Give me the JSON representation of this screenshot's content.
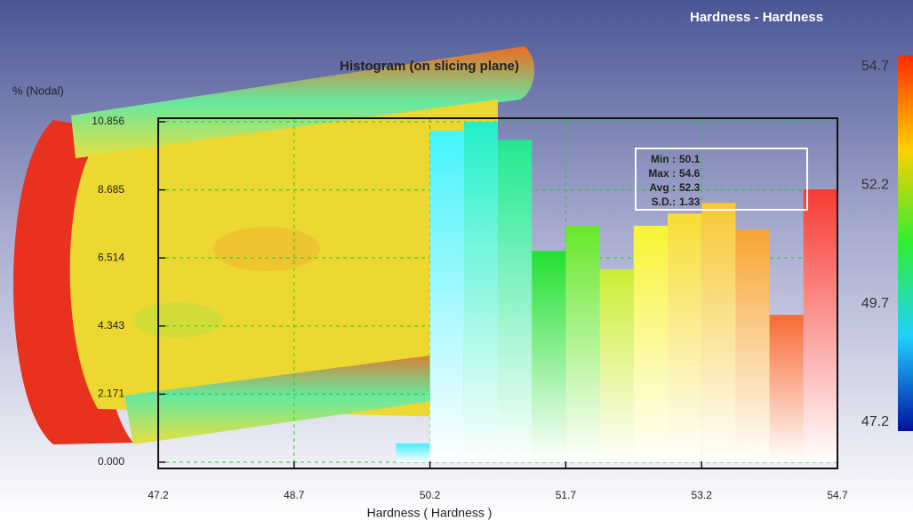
{
  "header": "Hardness - Hardness",
  "colorbar": {
    "ticks": [
      54.7,
      52.2,
      49.7,
      47.2
    ]
  },
  "chart_data": {
    "type": "histogram",
    "title": "Histogram (on slicing plane)",
    "y_label": "% (Nodal)",
    "x_label": "Hardness ( Hardness )",
    "bins": [
      49.825,
      50.2,
      50.575,
      50.95,
      51.325,
      51.7,
      52.075,
      52.45,
      52.825,
      53.2,
      53.575,
      53.95,
      54.325,
      54.7
    ],
    "values": [
      0.6,
      10.57,
      10.856,
      10.28,
      6.74,
      7.54,
      6.15,
      7.54,
      7.93,
      8.27,
      7.42,
      4.7,
      8.7
    ],
    "colors": [
      "#44eef8",
      "#44f4fc",
      "#22f0c8",
      "#22e890",
      "#22e030",
      "#66e82a",
      "#ccee33",
      "#f8f433",
      "#f8dd33",
      "#f8c833",
      "#f8a533",
      "#f86a33",
      "#f83a33"
    ],
    "xlim": [
      47.2,
      54.7
    ],
    "xticks": [
      47.2,
      48.7,
      50.2,
      51.7,
      53.2,
      54.7
    ],
    "ylim": [
      0,
      10.856
    ],
    "yticks": [
      {
        "value": 0,
        "label": "0.000"
      },
      2.171,
      4.343,
      6.514,
      8.685,
      10.856
    ],
    "grid": true,
    "stats": [
      {
        "label": "Min :",
        "value": 50.1
      },
      {
        "label": "Max :",
        "value": 54.6
      },
      {
        "label": "Avg :",
        "value": 52.3
      },
      {
        "label": "S.D.:",
        "value": 1.33
      }
    ]
  }
}
